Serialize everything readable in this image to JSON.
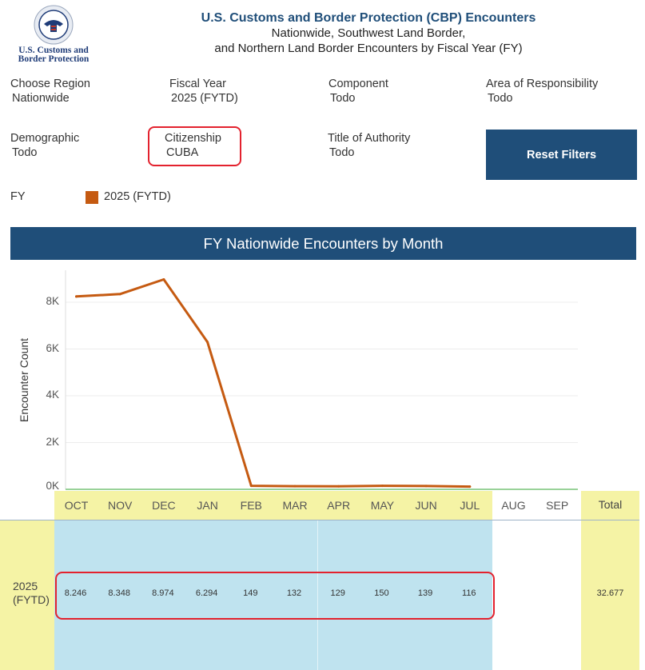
{
  "header": {
    "logo_line1": "U.S. Customs and",
    "logo_line2": "Border Protection",
    "title": "U.S. Customs and Border Protection (CBP) Encounters",
    "subtitle1": "Nationwide, Southwest Land Border,",
    "subtitle2": "and Northern Land Border Encounters by Fiscal Year (FY)"
  },
  "filters": {
    "region": {
      "label": "Choose Region",
      "value": "Nationwide"
    },
    "fiscal_year": {
      "label": "Fiscal Year",
      "value": "2025 (FYTD)"
    },
    "component": {
      "label": "Component",
      "value": "Todo"
    },
    "aor": {
      "label": "Area of Responsibility",
      "value": "Todo"
    },
    "demographic": {
      "label": "Demographic",
      "value": "Todo"
    },
    "citizenship": {
      "label": "Citizenship",
      "value": "CUBA"
    },
    "authority": {
      "label": "Title of Authority",
      "value": "Todo"
    },
    "reset_label": "Reset Filters"
  },
  "legend": {
    "label": "FY",
    "entry": "2025 (FYTD)",
    "color": "#c55a11"
  },
  "banner": "FY Nationwide Encounters by Month",
  "chart_data": {
    "type": "line",
    "title": "FY Nationwide Encounters by Month",
    "ylabel": "Encounter Count",
    "xlabel": "",
    "ylim": [
      0,
      9300
    ],
    "yticks": [
      0,
      2000,
      4000,
      6000,
      8000
    ],
    "ytick_labels": [
      "0K",
      "2K",
      "4K",
      "6K",
      "8K"
    ],
    "categories": [
      "OCT",
      "NOV",
      "DEC",
      "JAN",
      "FEB",
      "MAR",
      "APR",
      "MAY",
      "JUN",
      "JUL",
      "AUG",
      "SEP"
    ],
    "series": [
      {
        "name": "2025 (FYTD)",
        "color": "#c55a11",
        "values": [
          8246,
          8348,
          8974,
          6294,
          149,
          132,
          129,
          150,
          139,
          116,
          null,
          null
        ]
      }
    ],
    "grid": true
  },
  "table": {
    "row_label_line1": "2025",
    "row_label_line2": "(FYTD)",
    "cells": [
      "8.246",
      "8.348",
      "8.974",
      "6.294",
      "149",
      "132",
      "129",
      "150",
      "139",
      "116"
    ],
    "total_header": "Total",
    "total": "32.677"
  }
}
